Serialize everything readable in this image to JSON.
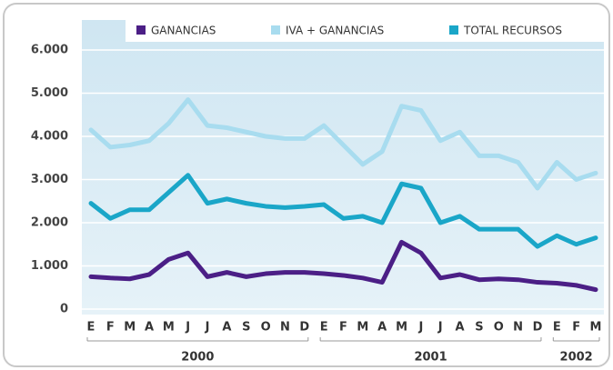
{
  "chart_data": {
    "type": "line",
    "categories": [
      "E",
      "F",
      "M",
      "A",
      "M",
      "J",
      "J",
      "A",
      "S",
      "O",
      "N",
      "D",
      "E",
      "F",
      "M",
      "A",
      "M",
      "J",
      "J",
      "A",
      "S",
      "O",
      "N",
      "D",
      "E",
      "F",
      "M"
    ],
    "years": [
      "2000",
      "2001",
      "2002"
    ],
    "series": [
      {
        "name": "GANANCIAS",
        "color": "#4b1f86",
        "values": [
          750,
          720,
          700,
          800,
          1150,
          1300,
          750,
          850,
          750,
          820,
          850,
          850,
          820,
          780,
          720,
          620,
          1550,
          1300,
          720,
          800,
          680,
          700,
          680,
          620,
          600,
          550,
          450
        ]
      },
      {
        "name": "IVA + GANANCIAS",
        "color": "#a8dcef",
        "values": [
          4150,
          3750,
          3800,
          3900,
          4300,
          4850,
          4250,
          4200,
          4100,
          4000,
          3950,
          3950,
          4250,
          3800,
          3350,
          3650,
          4700,
          4600,
          3900,
          4100,
          3550,
          3550,
          3400,
          2800,
          3400,
          3000,
          3150
        ]
      },
      {
        "name": "TOTAL RECURSOS",
        "color": "#1aa6c8",
        "values": [
          2450,
          2100,
          2300,
          2300,
          2700,
          3100,
          2450,
          2550,
          2450,
          2380,
          2350,
          2380,
          2420,
          2100,
          2150,
          2000,
          2900,
          2800,
          2000,
          2150,
          1850,
          1850,
          1850,
          1450,
          1700,
          1500,
          1650
        ]
      }
    ],
    "ylim": [
      0,
      6000
    ],
    "yticks": [
      0,
      {
        "value": 1000,
        "label": "1.000"
      },
      {
        "value": 2000,
        "label": "2.000"
      },
      {
        "value": 3000,
        "label": "3.000"
      },
      {
        "value": 4000,
        "label": "4.000"
      },
      {
        "value": 5000,
        "label": "5.000"
      },
      {
        "value": 6000,
        "label": "6.000"
      }
    ],
    "grid": true,
    "legend": "top"
  }
}
